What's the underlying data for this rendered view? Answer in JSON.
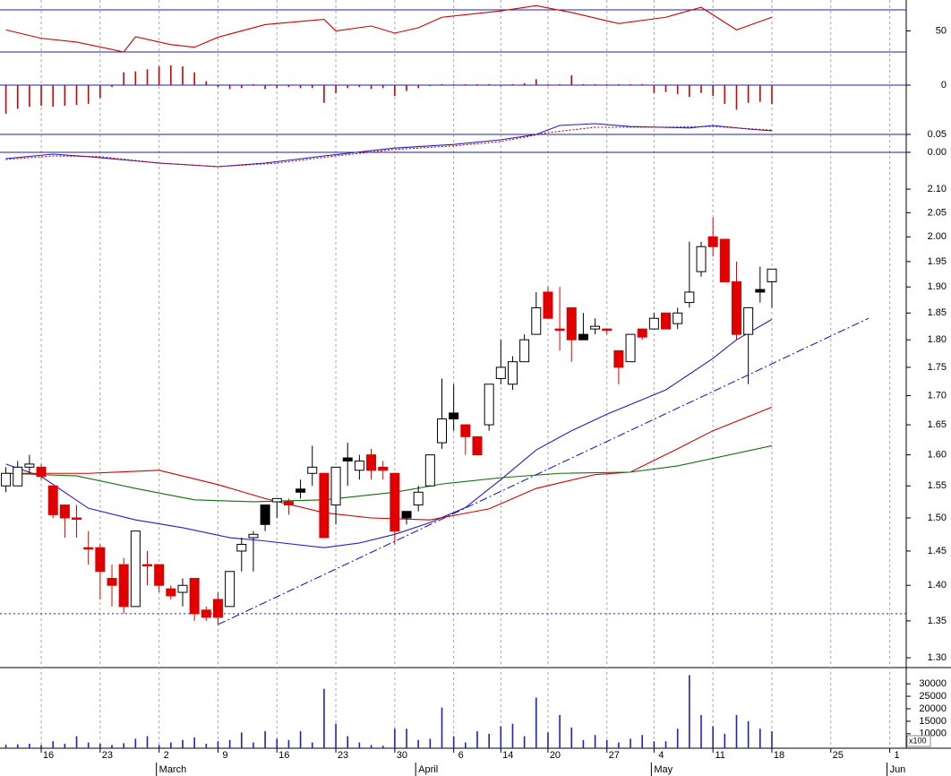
{
  "x_axis": {
    "xlim": [
      -0.5,
      76.4
    ],
    "xticks": [
      {
        "value": 3,
        "label": "16"
      },
      {
        "value": 8,
        "label": "23"
      },
      {
        "value": 13,
        "label": "2"
      },
      {
        "value": 18,
        "label": "9"
      },
      {
        "value": 23,
        "label": "16"
      },
      {
        "value": 28,
        "label": "23"
      },
      {
        "value": 33,
        "label": "30"
      },
      {
        "value": 38,
        "label": "6"
      },
      {
        "value": 42,
        "label": "14"
      },
      {
        "value": 46,
        "label": "20"
      },
      {
        "value": 51,
        "label": "27"
      },
      {
        "value": 55,
        "label": "4"
      },
      {
        "value": 60,
        "label": "11"
      },
      {
        "value": 65,
        "label": "18"
      },
      {
        "value": 70,
        "label": "25"
      },
      {
        "value": 75,
        "label": "1"
      }
    ],
    "months": [
      {
        "value": 13,
        "label": "March"
      },
      {
        "value": 35,
        "label": "April"
      },
      {
        "value": 55,
        "label": "May"
      },
      {
        "value": 75,
        "label": "Jun"
      }
    ]
  },
  "chart_data": [
    {
      "type": "line",
      "ylim": [
        26.6,
        79.4
      ],
      "yticks": [
        50
      ],
      "levels": [
        70,
        30
      ],
      "level_color": "#2020a0",
      "series": [
        {
          "color": "#d00000",
          "x": [
            0,
            3,
            6,
            10,
            11,
            14,
            16,
            18,
            22,
            27,
            28,
            31,
            33,
            35,
            37,
            42,
            45,
            48,
            52,
            56,
            59,
            62,
            65
          ],
          "values": [
            51,
            43,
            39.4,
            30,
            44.5,
            37,
            34.5,
            44,
            56,
            61,
            50,
            54.7,
            47.9,
            53,
            63,
            69,
            74,
            67.5,
            57,
            63,
            72.5,
            51,
            63
          ]
        }
      ]
    },
    {
      "type": "bar",
      "ylim": [
        -0.03,
        0.03
      ],
      "yticks": [
        0
      ],
      "grid": true,
      "grid_color": "#2020a0",
      "color": "#d00000",
      "values": [
        -0.029,
        -0.024,
        -0.022,
        -0.021,
        -0.022,
        -0.021,
        -0.02,
        -0.019,
        -0.013,
        -0.002,
        0.013,
        0.014,
        0.016,
        0.019,
        0.02,
        0.019,
        0.013,
        0.004,
        -0.002,
        -0.004,
        -0.003,
        0.001,
        -0.004,
        -0.003,
        -0.002,
        -0.003,
        -0.003,
        -0.018,
        -0.008,
        -0.003,
        -0.002,
        -0.004,
        -0.003,
        -0.011,
        -0.006,
        -0.003,
        -0.001,
        0.001,
        0.001,
        0.001,
        0.001,
        0.001,
        -0.001,
        0.001,
        0.002,
        0.006,
        0.001,
        0.001,
        0.01,
        0.001,
        0.001,
        0.001,
        0.001,
        0.001,
        0.001,
        -0.008,
        -0.007,
        -0.009,
        -0.012,
        -0.008,
        -0.011,
        -0.019,
        -0.025,
        -0.018,
        -0.017,
        -0.019
      ]
    },
    {
      "type": "line",
      "ylim": [
        -0.05,
        0.105
      ],
      "yticks": [
        {
          "value": 0.05,
          "label": "0.05"
        },
        {
          "value": 0,
          "label": "0.00"
        }
      ],
      "grid": true,
      "grid_color": "#2020a0",
      "series": [
        {
          "color": "#1f1fc8",
          "x": [
            0,
            4,
            7,
            13,
            18,
            22,
            27,
            33,
            38,
            42,
            45,
            47,
            50,
            53,
            58,
            60,
            63,
            65
          ],
          "values": [
            -0.0175,
            -0.005,
            -0.012,
            -0.03,
            -0.04,
            -0.03,
            -0.01,
            0.012,
            0.022,
            0.035,
            0.05,
            0.075,
            0.08,
            0.072,
            0.068,
            0.075,
            0.065,
            0.06
          ]
        },
        {
          "color": "#d00000",
          "dash": "2 2",
          "x": [
            0,
            4,
            8,
            13,
            18,
            23,
            28,
            33,
            38,
            42,
            46,
            50,
            55,
            60,
            65
          ],
          "values": [
            -0.02,
            -0.01,
            -0.012,
            -0.03,
            -0.04,
            -0.03,
            -0.01,
            0.008,
            0.018,
            0.03,
            0.055,
            0.07,
            0.07,
            0.072,
            0.062
          ]
        }
      ]
    },
    {
      "type": "candlestick",
      "log_scale": true,
      "ylim": [
        1.287,
        2.141
      ],
      "yticks": [
        {
          "value": 2.1,
          "label": "2.10"
        },
        {
          "value": 2.05,
          "label": "2.05"
        },
        {
          "value": 2.0,
          "label": "2.00"
        },
        {
          "value": 1.95,
          "label": "1.95"
        },
        {
          "value": 1.9,
          "label": "1.90"
        },
        {
          "value": 1.85,
          "label": "1.85"
        },
        {
          "value": 1.8,
          "label": "1.80"
        },
        {
          "value": 1.75,
          "label": "1.75"
        },
        {
          "value": 1.7,
          "label": "1.70"
        },
        {
          "value": 1.65,
          "label": "1.65"
        },
        {
          "value": 1.6,
          "label": "1.60"
        },
        {
          "value": 1.55,
          "label": "1.55"
        },
        {
          "value": 1.5,
          "label": "1.50"
        },
        {
          "value": 1.45,
          "label": "1.45"
        },
        {
          "value": 1.4,
          "label": "1.40"
        },
        {
          "value": 1.35,
          "label": "1.35"
        },
        {
          "value": 1.3,
          "label": "1.30"
        }
      ],
      "levels": [
        1.36
      ],
      "level_color": "#2020c0",
      "level_dash": "2 3",
      "open": [
        1.55,
        1.55,
        1.58,
        1.58,
        1.55,
        1.52,
        1.5,
        1.455,
        1.455,
        1.41,
        1.43,
        1.37,
        1.43,
        1.43,
        1.395,
        1.39,
        1.41,
        1.365,
        1.38,
        1.37,
        1.45,
        1.47,
        1.52,
        1.525,
        1.525,
        1.545,
        1.57,
        1.57,
        1.52,
        1.595,
        1.575,
        1.6,
        1.58,
        1.57,
        1.51,
        1.52,
        1.55,
        1.62,
        1.67,
        1.65,
        1.63,
        1.65,
        1.73,
        1.72,
        1.76,
        1.81,
        1.89,
        1.82,
        1.86,
        1.81,
        1.82,
        1.82,
        1.78,
        1.76,
        1.82,
        1.82,
        1.85,
        1.83,
        1.87,
        1.93,
        2.0,
        1.995,
        1.91,
        1.81,
        1.895,
        1.91
      ],
      "high": [
        1.58,
        1.59,
        1.6,
        1.585,
        1.55,
        1.52,
        1.52,
        1.48,
        1.46,
        1.43,
        1.44,
        1.48,
        1.45,
        1.43,
        1.4,
        1.41,
        1.41,
        1.37,
        1.39,
        1.42,
        1.47,
        1.48,
        1.52,
        1.53,
        1.53,
        1.56,
        1.615,
        1.57,
        1.58,
        1.62,
        1.6,
        1.61,
        1.59,
        1.57,
        1.51,
        1.55,
        1.6,
        1.73,
        1.72,
        1.65,
        1.63,
        1.72,
        1.8,
        1.77,
        1.81,
        1.89,
        1.9,
        1.9,
        1.86,
        1.85,
        1.84,
        1.82,
        1.78,
        1.81,
        1.82,
        1.85,
        1.85,
        1.86,
        1.99,
        1.99,
        2.04,
        1.995,
        1.95,
        1.86,
        1.94,
        1.935
      ],
      "low": [
        1.54,
        1.55,
        1.57,
        1.56,
        1.5,
        1.47,
        1.47,
        1.43,
        1.38,
        1.37,
        1.36,
        1.37,
        1.4,
        1.39,
        1.38,
        1.37,
        1.35,
        1.35,
        1.345,
        1.37,
        1.42,
        1.42,
        1.48,
        1.5,
        1.505,
        1.53,
        1.55,
        1.47,
        1.49,
        1.55,
        1.56,
        1.56,
        1.56,
        1.46,
        1.49,
        1.51,
        1.55,
        1.61,
        1.64,
        1.6,
        1.6,
        1.64,
        1.72,
        1.71,
        1.76,
        1.81,
        1.84,
        1.78,
        1.76,
        1.8,
        1.81,
        1.81,
        1.72,
        1.76,
        1.8,
        1.82,
        1.82,
        1.82,
        1.86,
        1.92,
        1.96,
        1.91,
        1.8,
        1.72,
        1.87,
        1.86
      ],
      "close": [
        1.57,
        1.58,
        1.585,
        1.565,
        1.505,
        1.5,
        1.5,
        1.455,
        1.42,
        1.4,
        1.37,
        1.48,
        1.43,
        1.4,
        1.385,
        1.4,
        1.36,
        1.355,
        1.355,
        1.42,
        1.46,
        1.475,
        1.49,
        1.53,
        1.52,
        1.54,
        1.58,
        1.47,
        1.58,
        1.59,
        1.59,
        1.575,
        1.575,
        1.48,
        1.5,
        1.54,
        1.6,
        1.66,
        1.66,
        1.63,
        1.6,
        1.72,
        1.75,
        1.76,
        1.8,
        1.86,
        1.84,
        1.82,
        1.8,
        1.8,
        1.825,
        1.82,
        1.75,
        1.81,
        1.805,
        1.84,
        1.82,
        1.85,
        1.89,
        1.98,
        1.98,
        1.91,
        1.81,
        1.86,
        1.89,
        1.935
      ],
      "colors": [
        "#ffffff",
        "#ffffff",
        "#ffffff",
        "#e00000",
        "#e00000",
        "#e00000",
        "#e00000",
        "#e00000",
        "#e00000",
        "#e00000",
        "#e00000",
        "#ffffff",
        "#e00000",
        "#e00000",
        "#e00000",
        "#ffffff",
        "#e00000",
        "#e00000",
        "#e00000",
        "#ffffff",
        "#ffffff",
        "#ffffff",
        "#000000",
        "#ffffff",
        "#e00000",
        "#000000",
        "#ffffff",
        "#e00000",
        "#ffffff",
        "#000000",
        "#ffffff",
        "#e00000",
        "#e00000",
        "#e00000",
        "#000000",
        "#ffffff",
        "#ffffff",
        "#ffffff",
        "#000000",
        "#e00000",
        "#e00000",
        "#ffffff",
        "#ffffff",
        "#ffffff",
        "#ffffff",
        "#ffffff",
        "#e00000",
        "#e00000",
        "#e00000",
        "#000000",
        "#ffffff",
        "#e00000",
        "#e00000",
        "#ffffff",
        "#e00000",
        "#ffffff",
        "#e00000",
        "#ffffff",
        "#ffffff",
        "#ffffff",
        "#e00000",
        "#e00000",
        "#e00000",
        "#ffffff",
        "#000000",
        "#ffffff"
      ],
      "series": [
        {
          "color": "#1f1fc8",
          "x": [
            0,
            3,
            7,
            11,
            15,
            19,
            22,
            27,
            30,
            33,
            36,
            39,
            42,
            45,
            48,
            51,
            56,
            60,
            62,
            65
          ],
          "values": [
            1.585,
            1.565,
            1.515,
            1.497,
            1.485,
            1.47,
            1.465,
            1.455,
            1.462,
            1.475,
            1.493,
            1.516,
            1.56,
            1.608,
            1.64,
            1.668,
            1.71,
            1.766,
            1.8,
            1.838
          ]
        },
        {
          "color": "#d00000",
          "x": [
            0,
            7,
            13,
            18,
            22,
            27,
            31,
            36,
            41,
            45,
            50,
            53,
            57,
            60,
            65
          ],
          "values": [
            1.57,
            1.57,
            1.575,
            1.552,
            1.53,
            1.508,
            1.5,
            1.497,
            1.514,
            1.546,
            1.568,
            1.572,
            1.61,
            1.64,
            1.68
          ]
        },
        {
          "color": "#107010",
          "x": [
            0,
            6,
            11,
            16,
            21,
            27,
            33,
            37,
            42,
            47,
            53,
            57,
            65
          ],
          "values": [
            1.57,
            1.566,
            1.546,
            1.528,
            1.525,
            1.528,
            1.54,
            1.553,
            1.563,
            1.57,
            1.572,
            1.582,
            1.615
          ]
        },
        {
          "color": "#2020c0",
          "dash": "9 3 2 3",
          "x": [
            18,
            73.2
          ],
          "values": [
            1.345,
            1.84
          ]
        }
      ]
    },
    {
      "type": "bar",
      "ylim": [
        4200,
        36500
      ],
      "yticks": [
        30000,
        25000,
        20000,
        15000,
        10000
      ],
      "unit_label": "x100",
      "color": "#1f1fc8",
      "values": [
        5600,
        5800,
        6000,
        5500,
        7000,
        6000,
        9000,
        6500,
        6000,
        5500,
        6200,
        8000,
        9000,
        5500,
        6500,
        7500,
        8500,
        6000,
        7000,
        7500,
        10500,
        6500,
        11000,
        8000,
        7500,
        11000,
        6500,
        28000,
        14000,
        9000,
        6500,
        5500,
        5200,
        12000,
        12000,
        7500,
        8000,
        20500,
        9000,
        6500,
        11000,
        10000,
        13000,
        14000,
        9000,
        24500,
        10500,
        17500,
        12500,
        7500,
        9500,
        7500,
        6500,
        8000,
        9500,
        7000,
        7000,
        12000,
        33500,
        17500,
        13000,
        10000,
        17500,
        15000,
        12000,
        11000
      ]
    }
  ]
}
